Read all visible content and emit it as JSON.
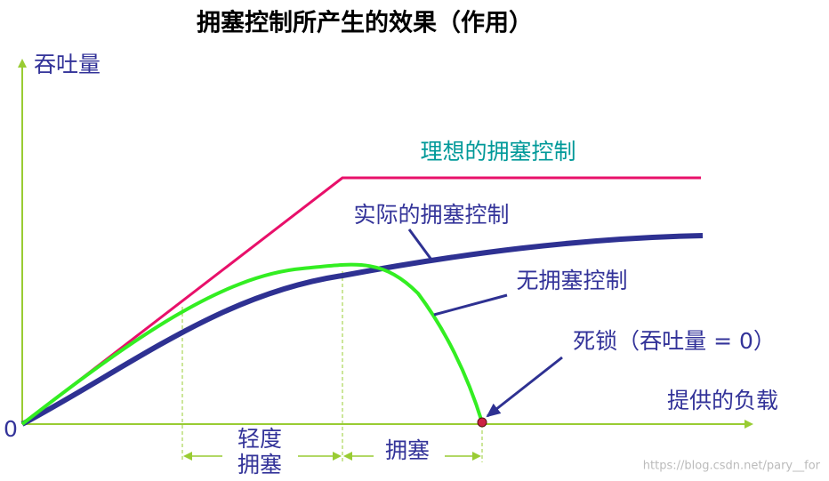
{
  "title": "拥塞控制所产生的效果（作用）",
  "axes": {
    "y_label": "吞吐量",
    "x_label": "提供的负载",
    "origin": "0"
  },
  "curves": [
    {
      "label": "理想的拥塞控制"
    },
    {
      "label": "实际的拥塞控制"
    },
    {
      "label": "无拥塞控制"
    }
  ],
  "deadlock": "死锁（吞吐量 = 0）",
  "regions": [
    {
      "label_lines": [
        "轻度",
        "拥塞"
      ]
    },
    {
      "label_lines": [
        "拥塞"
      ]
    }
  ],
  "watermark": "https://blog.csdn.net/pary__for"
}
